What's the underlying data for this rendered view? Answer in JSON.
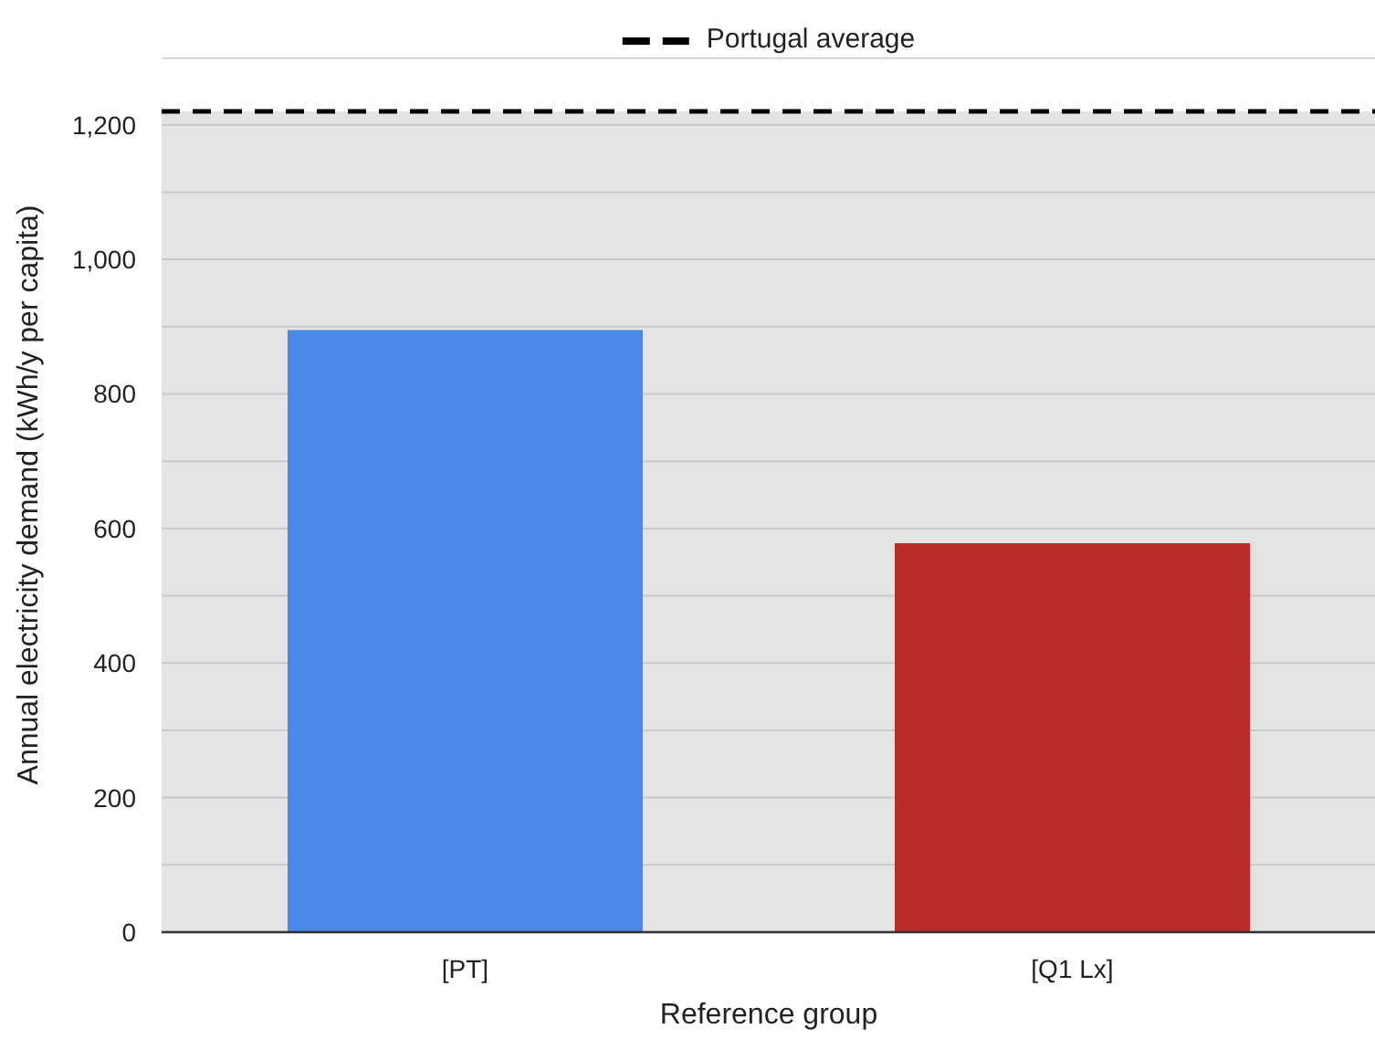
{
  "chart_data": {
    "type": "bar",
    "categories": [
      "[PT]",
      "[Q1 Lx]"
    ],
    "values": [
      895,
      578
    ],
    "colors": [
      "#4a89e8",
      "#b92b27"
    ],
    "xlabel": "Reference group",
    "ylabel": "Annual electricity demand (kWh/y per capita)",
    "ylim": [
      0,
      1300
    ],
    "yticks": [
      0,
      {
        "value": 100,
        "label": null
      },
      200,
      {
        "value": 300,
        "label": null
      },
      400,
      {
        "value": 500,
        "label": null
      },
      600,
      {
        "value": 700,
        "label": null
      },
      800,
      {
        "value": 900,
        "label": null
      },
      {
        "value": 1000,
        "label": "1,000"
      },
      {
        "value": 1100,
        "label": null
      },
      {
        "value": 1200,
        "label": "1,200"
      },
      {
        "value": 1300,
        "label": null
      }
    ],
    "grid": "y",
    "legend": "top",
    "ref_lines": [
      {
        "axis": "y",
        "value": 1220,
        "label": "Portugal average",
        "color": "#000000",
        "line_style": "dashed"
      }
    ],
    "bands": [
      {
        "axis": "y",
        "from": 0,
        "to": 1220,
        "color": "#e4e4e4"
      }
    ]
  }
}
